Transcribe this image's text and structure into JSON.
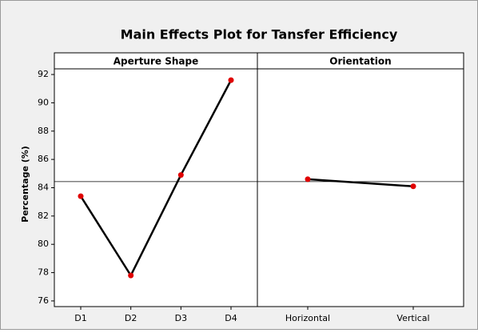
{
  "chart_data": {
    "type": "line",
    "title": "Main Effects Plot for Tansfer Efficiency",
    "ylabel": "Percentage (%)",
    "ylim": [
      75.6,
      92.4
    ],
    "yticks": [
      76,
      78,
      80,
      82,
      84,
      86,
      88,
      90,
      92
    ],
    "reference": 84.43,
    "color": "#000000",
    "marker_color": "#e00000",
    "panels": [
      {
        "title": "Aperture Shape",
        "categories": [
          "D1",
          "D2",
          "D3",
          "D4"
        ],
        "values": [
          83.4,
          77.8,
          84.9,
          91.6
        ]
      },
      {
        "title": "Orientation",
        "categories": [
          "Horizontal",
          "Vertical"
        ],
        "values": [
          84.6,
          84.1
        ]
      }
    ]
  }
}
